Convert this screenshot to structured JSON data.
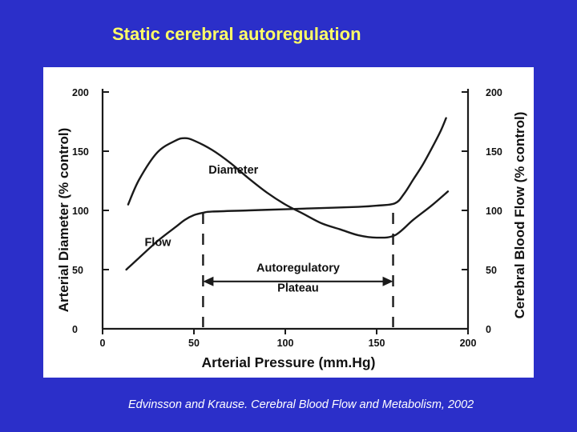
{
  "slide": {
    "title": "Static cerebral autoregulation",
    "citation": "Edvinsson and Krause. Cerebral Blood Flow and Metabolism, 2002"
  },
  "colors": {
    "background": "#2b2fc9",
    "title": "#ffff66",
    "citation": "#ffffff",
    "panel": "#ffffff",
    "curve": "#1a1a1a"
  },
  "chart_data": {
    "type": "line",
    "xlabel": "Arterial Pressure (mm.Hg)",
    "ylabel_left": "Arterial Diameter (% control)",
    "ylabel_right": "Cerebral Blood Flow (% control)",
    "xlim": [
      0,
      200
    ],
    "ylim": [
      0,
      200
    ],
    "x_ticks": [
      "0",
      "50",
      "100",
      "150",
      "200"
    ],
    "y_ticks_left": [
      "0",
      "50",
      "100",
      "150",
      "200"
    ],
    "y_ticks_right": [
      "0",
      "50",
      "100",
      "150",
      "200"
    ],
    "grid": false,
    "series": [
      {
        "name": "Diameter",
        "x": [
          14,
          20,
          30,
          40,
          45,
          50,
          60,
          70,
          80,
          90,
          100,
          110,
          120,
          130,
          140,
          150,
          160,
          170,
          180,
          189
        ],
        "y": [
          105,
          126,
          149,
          159,
          161,
          159,
          151,
          140,
          127,
          115,
          105,
          97,
          89,
          84,
          79,
          77,
          79,
          92,
          104,
          116
        ]
      },
      {
        "name": "Flow",
        "x": [
          13,
          20,
          30,
          40,
          45,
          50,
          55,
          60,
          80,
          100,
          120,
          140,
          150,
          160,
          165,
          170,
          175,
          180,
          185,
          188
        ],
        "y": [
          50,
          60,
          74,
          86,
          92,
          96,
          98,
          99,
          100,
          101,
          102,
          103,
          104,
          106,
          114,
          126,
          138,
          152,
          167,
          178
        ]
      }
    ],
    "annotations": {
      "plateau_label_1": "Autoregulatory",
      "plateau_label_2": "Plateau",
      "plateau_range": [
        55,
        159
      ]
    }
  }
}
